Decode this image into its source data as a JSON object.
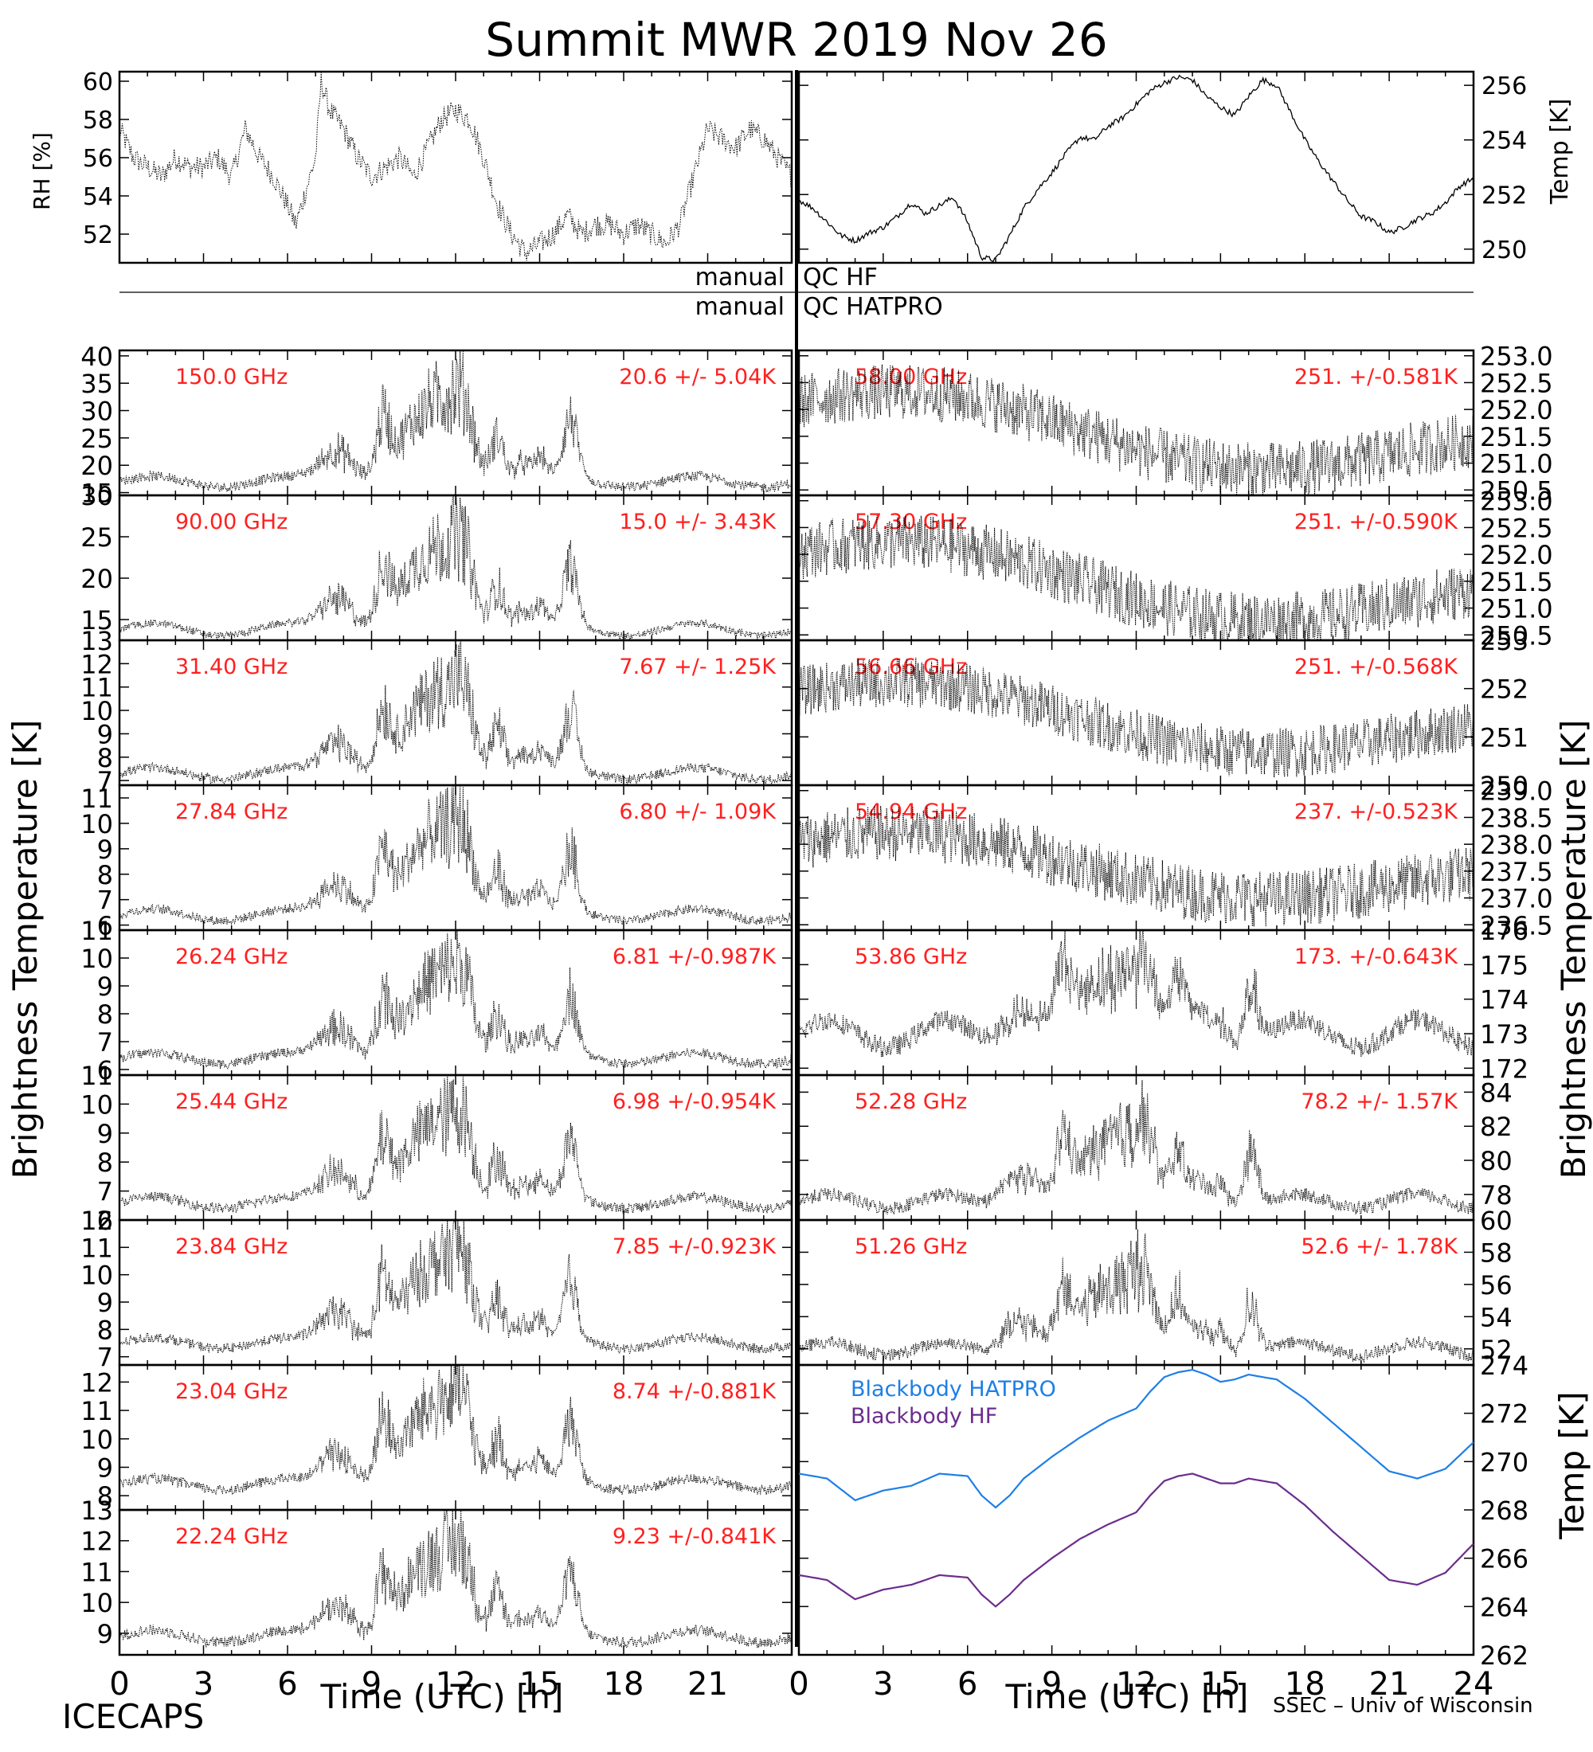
{
  "title": "Summit MWR 2019 Nov 26",
  "footer": {
    "left": "ICECAPS",
    "right": "SSEC – Univ of Wisconsin"
  },
  "qc": {
    "row1_left": "manual",
    "row1_right": "QC HF",
    "row2_left": "manual",
    "row2_right": "QC HATPRO"
  },
  "axis_labels": {
    "rh": "RH [%]",
    "temp_top": "Temp [K]",
    "bt_left": "Brightness Temperature [K]",
    "bt_right": "Brightness Temperature [K]",
    "temp_bottom": "Temp [K]",
    "time": "Time (UTC) [h]"
  },
  "colors": {
    "data": "#000000",
    "channel_label": "#ff2020",
    "hatpro": "#1e7fe6",
    "hf": "#6b2d8c"
  },
  "chart_data": [
    {
      "type": "line",
      "panel": "rh",
      "ylabel": "RH [%]",
      "ylim": [
        50.5,
        60.5
      ],
      "yticks": [
        52,
        54,
        56,
        58,
        60
      ],
      "xlim": [
        0,
        24
      ],
      "xticks": [
        0,
        3,
        6,
        9,
        12,
        15,
        18,
        21
      ],
      "x": [
        0,
        0.5,
        1,
        1.5,
        2,
        2.5,
        3,
        3.5,
        4,
        4.5,
        5,
        5.5,
        6,
        6.3,
        7,
        7.2,
        7.5,
        8,
        8.5,
        9,
        9.5,
        10,
        10.5,
        11,
        11.5,
        12,
        12.5,
        13,
        13.5,
        14,
        14.5,
        15,
        15.5,
        16,
        16.5,
        17,
        17.5,
        18,
        18.5,
        19,
        19.5,
        20,
        20.5,
        21,
        21.5,
        22,
        22.5,
        23,
        23.5,
        24
      ],
      "y": [
        57.5,
        56.0,
        55.5,
        55.0,
        56.0,
        55.5,
        55.5,
        56.0,
        55.0,
        57.5,
        56.0,
        55.0,
        53.5,
        52.5,
        56.0,
        60.0,
        58.5,
        57.5,
        56.0,
        55.0,
        55.5,
        56.0,
        55.0,
        56.5,
        58.0,
        58.5,
        58.0,
        56.0,
        53.5,
        52.0,
        51.0,
        51.5,
        52.0,
        53.0,
        52.0,
        52.5,
        52.5,
        52.0,
        52.5,
        52.0,
        51.5,
        52.5,
        55.0,
        57.5,
        57.0,
        56.5,
        57.5,
        57.0,
        56.0,
        55.0
      ]
    },
    {
      "type": "line",
      "panel": "temp",
      "ylabel": "Temp [K]",
      "ylim": [
        249.5,
        256.5
      ],
      "yticks": [
        250,
        252,
        254,
        256
      ],
      "xlim": [
        0,
        24
      ],
      "x": [
        0,
        0.5,
        1,
        1.5,
        2,
        2.5,
        3,
        3.5,
        4,
        4.5,
        5,
        5.5,
        6,
        6.5,
        7,
        7.5,
        8,
        8.5,
        9,
        9.5,
        10,
        10.5,
        11,
        11.5,
        12,
        12.5,
        13,
        13.5,
        14,
        14.5,
        15,
        15.5,
        16,
        16.5,
        17,
        17.5,
        18,
        18.5,
        19,
        19.5,
        20,
        20.5,
        21,
        21.5,
        22,
        22.5,
        23,
        23.5,
        24
      ],
      "y": [
        251.8,
        251.5,
        251.0,
        250.5,
        250.3,
        250.6,
        250.8,
        251.2,
        251.7,
        251.3,
        251.6,
        251.9,
        251.0,
        249.7,
        249.6,
        250.5,
        251.5,
        252.2,
        252.8,
        253.5,
        254.1,
        254.0,
        254.5,
        254.8,
        255.3,
        255.8,
        256.1,
        256.3,
        256.2,
        255.6,
        255.2,
        254.9,
        255.6,
        256.2,
        256.0,
        255.0,
        254.0,
        253.2,
        252.5,
        251.8,
        251.2,
        251.0,
        250.6,
        250.8,
        251.1,
        251.3,
        251.7,
        252.3,
        252.6
      ]
    },
    {
      "type": "scatter",
      "column": "left",
      "label": "150.0 GHz",
      "stats": "20.6 +/-  5.04K",
      "ylim": [
        14.5,
        41
      ],
      "yticks": [
        15,
        20,
        25,
        30,
        35,
        40
      ],
      "base": 17,
      "amp": 1.0,
      "noise": 0.9
    },
    {
      "type": "scatter",
      "column": "left",
      "label": "90.00 GHz",
      "stats": "15.0 +/-  3.43K",
      "ylim": [
        12.5,
        30
      ],
      "yticks": [
        15,
        20,
        25,
        30
      ],
      "base": 13.8,
      "amp": 0.75,
      "noise": 0.45
    },
    {
      "type": "scatter",
      "column": "left",
      "label": "31.40 GHz",
      "stats": "7.67 +/- 1.25K",
      "ylim": [
        6.8,
        13
      ],
      "yticks": [
        7,
        8,
        9,
        10,
        11,
        12,
        13
      ],
      "base": 7.3,
      "amp": 0.25,
      "noise": 0.2
    },
    {
      "type": "scatter",
      "column": "left",
      "label": "27.84 GHz",
      "stats": "6.80 +/- 1.09K",
      "ylim": [
        5.8,
        11.5
      ],
      "yticks": [
        6,
        7,
        8,
        9,
        10,
        11
      ],
      "base": 6.4,
      "amp": 0.23,
      "noise": 0.18
    },
    {
      "type": "scatter",
      "column": "left",
      "label": "26.24 GHz",
      "stats": "6.81 +/-0.987K",
      "ylim": [
        5.8,
        11
      ],
      "yticks": [
        6,
        7,
        8,
        9,
        10,
        11
      ],
      "base": 6.4,
      "amp": 0.2,
      "noise": 0.18
    },
    {
      "type": "scatter",
      "column": "left",
      "label": "25.44 GHz",
      "stats": "6.98 +/-0.954K",
      "ylim": [
        6,
        11
      ],
      "yticks": [
        6,
        7,
        8,
        9,
        10,
        11
      ],
      "base": 6.6,
      "amp": 0.2,
      "noise": 0.18
    },
    {
      "type": "scatter",
      "column": "left",
      "label": "23.84 GHz",
      "stats": "7.85 +/-0.923K",
      "ylim": [
        6.7,
        12
      ],
      "yticks": [
        7,
        8,
        9,
        10,
        11,
        12
      ],
      "base": 7.5,
      "amp": 0.2,
      "noise": 0.18
    },
    {
      "type": "scatter",
      "column": "left",
      "label": "23.04 GHz",
      "stats": "8.74 +/-0.881K",
      "ylim": [
        7.5,
        12.6
      ],
      "yticks": [
        8,
        9,
        10,
        11,
        12
      ],
      "base": 8.4,
      "amp": 0.2,
      "noise": 0.18
    },
    {
      "type": "scatter",
      "column": "left",
      "label": "22.24 GHz",
      "stats": "9.23 +/-0.841K",
      "ylim": [
        8.3,
        13
      ],
      "yticks": [
        9,
        10,
        11,
        12,
        13
      ],
      "base": 8.9,
      "amp": 0.2,
      "noise": 0.18
    },
    {
      "type": "scatter",
      "column": "right",
      "label": "58.00 GHz",
      "stats": "251. +/-0.581K",
      "ylim": [
        250.4,
        253.1
      ],
      "yticks": [
        250.5,
        251.0,
        251.5,
        252.0,
        252.5,
        253.0
      ],
      "ytick_text": [
        "250.5",
        "251.0",
        "251.5",
        "252.0",
        "252.5",
        "253.0"
      ],
      "base": 251.6,
      "amp": 0.6,
      "noise": 0.35
    },
    {
      "type": "scatter",
      "column": "right",
      "label": "57.30 GHz",
      "stats": "251. +/-0.590K",
      "ylim": [
        250.4,
        253.1
      ],
      "yticks": [
        250.5,
        251.0,
        251.5,
        252.0,
        252.5,
        253.0
      ],
      "ytick_text": [
        "250.5",
        "251.0",
        "251.5",
        "252.0",
        "252.5",
        "253.0"
      ],
      "base": 251.5,
      "amp": 0.6,
      "noise": 0.35
    },
    {
      "type": "scatter",
      "column": "right",
      "label": "56.66 GHz",
      "stats": "251. +/-0.568K",
      "ylim": [
        250,
        253
      ],
      "yticks": [
        250,
        251,
        252,
        253
      ],
      "base": 251.4,
      "amp": 0.6,
      "noise": 0.35
    },
    {
      "type": "scatter",
      "column": "right",
      "label": "54.94 GHz",
      "stats": "237. +/-0.523K",
      "ylim": [
        236.4,
        239.1
      ],
      "yticks": [
        236.5,
        237.0,
        237.5,
        238.0,
        238.5,
        239.0
      ],
      "ytick_text": [
        "236.5",
        "237.0",
        "237.5",
        "238.0",
        "238.5",
        "239.0"
      ],
      "base": 237.6,
      "amp": 0.5,
      "noise": 0.35
    },
    {
      "type": "scatter",
      "column": "right",
      "label": "53.86 GHz",
      "stats": "173. +/-0.643K",
      "ylim": [
        171.8,
        176
      ],
      "yticks": [
        172,
        173,
        174,
        175,
        176
      ],
      "base": 173.0,
      "amp": 0.4,
      "noise": 0.3
    },
    {
      "type": "scatter",
      "column": "right",
      "label": "52.28 GHz",
      "stats": "78.2 +/- 1.57K",
      "ylim": [
        76.5,
        85
      ],
      "yticks": [
        78,
        80,
        82,
        84
      ],
      "base": 77.6,
      "amp": 0.4,
      "noise": 0.4
    },
    {
      "type": "scatter",
      "column": "right",
      "label": "51.26 GHz",
      "stats": "52.6 +/- 1.78K",
      "ylim": [
        51,
        60
      ],
      "yticks": [
        52,
        54,
        56,
        58,
        60
      ],
      "base": 52.0,
      "amp": 0.4,
      "noise": 0.4
    },
    {
      "type": "line",
      "panel": "blackbody",
      "ylabel": "Temp [K]",
      "ylim": [
        262,
        274
      ],
      "yticks": [
        262,
        264,
        266,
        268,
        270,
        272,
        274
      ],
      "xlim": [
        0,
        24
      ],
      "xticks": [
        0,
        3,
        6,
        9,
        12,
        15,
        18,
        21,
        24
      ],
      "series": [
        {
          "name": "Blackbody HATPRO",
          "x": [
            0,
            1,
            2,
            3,
            4,
            5,
            6,
            6.5,
            7,
            7.5,
            8,
            9,
            10,
            11,
            12,
            12.5,
            13,
            13.5,
            14,
            14.5,
            15,
            15.5,
            16,
            17,
            18,
            19,
            20,
            21,
            22,
            23,
            24
          ],
          "y": [
            269.5,
            269.3,
            268.4,
            268.8,
            269.0,
            269.5,
            269.4,
            268.6,
            268.1,
            268.6,
            269.3,
            270.2,
            271.0,
            271.7,
            272.2,
            272.9,
            273.5,
            273.7,
            273.8,
            273.6,
            273.3,
            273.4,
            273.6,
            273.4,
            272.6,
            271.6,
            270.6,
            269.6,
            269.3,
            269.7,
            270.8
          ]
        },
        {
          "name": "Blackbody HF",
          "x": [
            0,
            1,
            2,
            3,
            4,
            5,
            6,
            6.5,
            7,
            7.5,
            8,
            9,
            10,
            11,
            12,
            12.5,
            13,
            13.5,
            14,
            14.5,
            15,
            15.5,
            16,
            17,
            18,
            19,
            20,
            21,
            22,
            23,
            24
          ],
          "y": [
            265.3,
            265.1,
            264.3,
            264.7,
            264.9,
            265.3,
            265.2,
            264.5,
            264.0,
            264.5,
            265.1,
            266.0,
            266.8,
            267.4,
            267.9,
            268.6,
            269.2,
            269.4,
            269.5,
            269.3,
            269.1,
            269.1,
            269.3,
            269.1,
            268.2,
            267.1,
            266.1,
            265.1,
            264.9,
            265.4,
            266.6
          ]
        }
      ]
    }
  ]
}
